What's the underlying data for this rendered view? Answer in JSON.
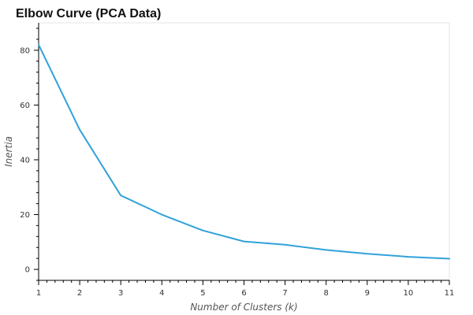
{
  "chart_data": {
    "type": "line",
    "title": "Elbow Curve (PCA Data)",
    "xlabel": "Number of Clusters (k)",
    "ylabel": "Inertia",
    "x": [
      1,
      2,
      3,
      4,
      5,
      6,
      7,
      8,
      9,
      10,
      11
    ],
    "series": [
      {
        "values": [
          82,
          51,
          27,
          20,
          14.2,
          10.2,
          9,
          7.1,
          5.7,
          4.6,
          3.9
        ],
        "color": "#30a2da"
      }
    ],
    "xlim": [
      1,
      11
    ],
    "ylim": [
      -4,
      90
    ],
    "xticks": [
      "1",
      "2",
      "3",
      "4",
      "5",
      "6",
      "7",
      "8",
      "9",
      "10",
      "11"
    ],
    "yticks": [
      "0",
      "20",
      "40",
      "60",
      "80"
    ],
    "grid": false,
    "legend": "none"
  }
}
